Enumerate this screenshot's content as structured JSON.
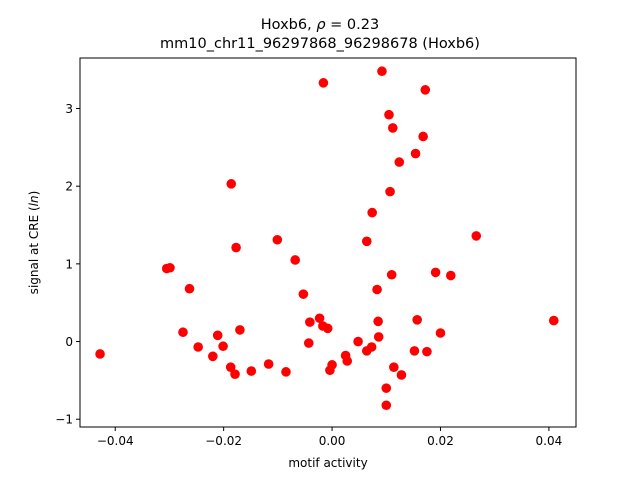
{
  "chart_data": {
    "type": "scatter",
    "title_gene": "Hoxb6",
    "title_rho_symbol": "ρ",
    "title_rho_value": "0.23",
    "subtitle": "mm10_chr11_96297868_96298678 (Hoxb6)",
    "xlabel": "motif activity",
    "ylabel_main": "signal at CRE (",
    "ylabel_italic": "ln",
    "ylabel_end": ")",
    "xlim": [
      -0.0465,
      0.045
    ],
    "ylim": [
      -1.1,
      3.65
    ],
    "xticks": [
      {
        "value": -0.04,
        "label": "−0.04"
      },
      {
        "value": -0.02,
        "label": "−0.02"
      },
      {
        "value": 0.0,
        "label": "0.00"
      },
      {
        "value": 0.02,
        "label": "0.02"
      },
      {
        "value": 0.04,
        "label": "0.04"
      }
    ],
    "yticks": [
      {
        "value": -1,
        "label": "−1"
      },
      {
        "value": 0,
        "label": "0"
      },
      {
        "value": 1,
        "label": "1"
      },
      {
        "value": 2,
        "label": "2"
      },
      {
        "value": 3,
        "label": "3"
      }
    ],
    "grid": false,
    "marker_color": "#ff0000",
    "points": [
      {
        "x": -0.0428,
        "y": -0.16
      },
      {
        "x": -0.0305,
        "y": 0.94
      },
      {
        "x": -0.0299,
        "y": 0.95
      },
      {
        "x": -0.0275,
        "y": 0.12
      },
      {
        "x": -0.0263,
        "y": 0.68
      },
      {
        "x": -0.0247,
        "y": -0.07
      },
      {
        "x": -0.022,
        "y": -0.19
      },
      {
        "x": -0.0211,
        "y": 0.08
      },
      {
        "x": -0.0201,
        "y": -0.06
      },
      {
        "x": -0.0187,
        "y": -0.33
      },
      {
        "x": -0.0186,
        "y": 2.03
      },
      {
        "x": -0.0179,
        "y": -0.42
      },
      {
        "x": -0.0177,
        "y": 1.21
      },
      {
        "x": -0.017,
        "y": 0.15
      },
      {
        "x": -0.0149,
        "y": -0.38
      },
      {
        "x": -0.0117,
        "y": -0.29
      },
      {
        "x": -0.0101,
        "y": 1.31
      },
      {
        "x": -0.0085,
        "y": -0.39
      },
      {
        "x": -0.0068,
        "y": 1.05
      },
      {
        "x": -0.0053,
        "y": 0.61
      },
      {
        "x": -0.0043,
        "y": -0.02
      },
      {
        "x": -0.0041,
        "y": 0.25
      },
      {
        "x": -0.0023,
        "y": 0.3
      },
      {
        "x": -0.0017,
        "y": 0.2
      },
      {
        "x": -0.0016,
        "y": 3.33
      },
      {
        "x": -0.0008,
        "y": 0.17
      },
      {
        "x": -0.0004,
        "y": -0.37
      },
      {
        "x": 0.0,
        "y": -0.3
      },
      {
        "x": 0.0025,
        "y": -0.18
      },
      {
        "x": 0.0028,
        "y": -0.25
      },
      {
        "x": 0.0048,
        "y": 0.0
      },
      {
        "x": 0.0064,
        "y": -0.12
      },
      {
        "x": 0.0064,
        "y": 1.29
      },
      {
        "x": 0.0073,
        "y": -0.07
      },
      {
        "x": 0.0074,
        "y": 1.66
      },
      {
        "x": 0.0083,
        "y": 0.67
      },
      {
        "x": 0.0085,
        "y": 0.26
      },
      {
        "x": 0.0086,
        "y": 0.06
      },
      {
        "x": 0.0092,
        "y": 3.48
      },
      {
        "x": 0.01,
        "y": -0.6
      },
      {
        "x": 0.01,
        "y": -0.82
      },
      {
        "x": 0.0105,
        "y": 2.92
      },
      {
        "x": 0.0107,
        "y": 1.93
      },
      {
        "x": 0.011,
        "y": 0.86
      },
      {
        "x": 0.0112,
        "y": 2.75
      },
      {
        "x": 0.0114,
        "y": -0.33
      },
      {
        "x": 0.0124,
        "y": 2.31
      },
      {
        "x": 0.0128,
        "y": -0.43
      },
      {
        "x": 0.0152,
        "y": -0.12
      },
      {
        "x": 0.0154,
        "y": 2.42
      },
      {
        "x": 0.0157,
        "y": 0.28
      },
      {
        "x": 0.0168,
        "y": 2.64
      },
      {
        "x": 0.0172,
        "y": 3.24
      },
      {
        "x": 0.0175,
        "y": -0.13
      },
      {
        "x": 0.0191,
        "y": 0.89
      },
      {
        "x": 0.02,
        "y": 0.11
      },
      {
        "x": 0.0219,
        "y": 0.85
      },
      {
        "x": 0.0266,
        "y": 1.36
      },
      {
        "x": 0.0409,
        "y": 0.27
      }
    ]
  }
}
